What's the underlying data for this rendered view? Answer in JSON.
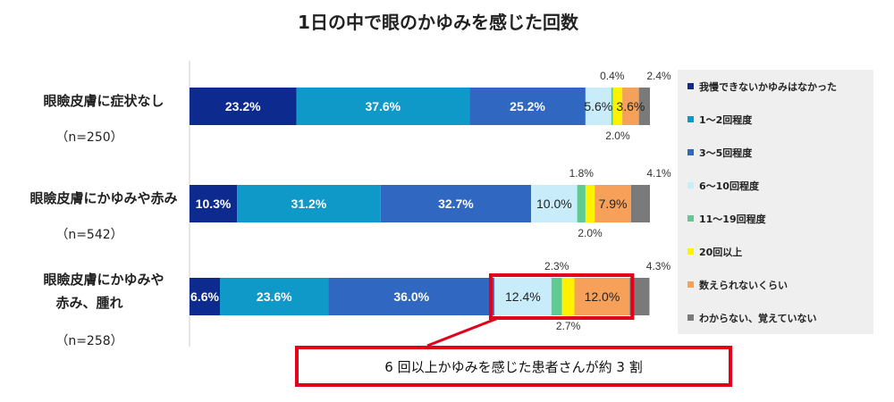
{
  "chart_data": {
    "type": "bar",
    "orientation": "horizontal",
    "stacked": true,
    "title": "1日の中で眼のかゆみを感じた回数",
    "categories": [
      {
        "lines": [
          "眼瞼皮膚に症状なし"
        ],
        "n": "（n=250）"
      },
      {
        "lines": [
          "眼瞼皮膚にかゆみや赤み"
        ],
        "n": "（n=542）"
      },
      {
        "lines": [
          "眼瞼皮膚にかゆみや",
          "赤み、腫れ"
        ],
        "n": "（n=258）"
      }
    ],
    "series": [
      {
        "name": "我慢できないかゆみはなかった",
        "color": "#0d2a8f",
        "values": [
          23.2,
          10.3,
          6.6
        ]
      },
      {
        "name": "1～2回程度",
        "color": "#0f99c8",
        "values": [
          37.6,
          31.2,
          23.6
        ]
      },
      {
        "name": "3～5回程度",
        "color": "#2f67c1",
        "values": [
          25.2,
          32.7,
          36.0
        ]
      },
      {
        "name": "6～10回程度",
        "color": "#c9ecfa",
        "values": [
          5.6,
          10.0,
          12.4
        ]
      },
      {
        "name": "11～19回程度",
        "color": "#5ecb92",
        "values": [
          0.4,
          1.8,
          2.3
        ]
      },
      {
        "name": "20回以上",
        "color": "#fff200",
        "values": [
          2.0,
          2.0,
          2.7
        ]
      },
      {
        "name": "数えられないくらい",
        "color": "#f6a05a",
        "values": [
          3.6,
          7.9,
          12.0
        ]
      },
      {
        "name": "わからない、覚えていない",
        "color": "#7a7a7a",
        "values": [
          2.4,
          4.1,
          4.3
        ]
      }
    ],
    "labels": [
      [
        "23.2%",
        "37.6%",
        "25.2%",
        "5.6%",
        "0.4%",
        "2.0%",
        "3.6%",
        "2.4%"
      ],
      [
        "10.3%",
        "31.2%",
        "32.7%",
        "10.0%",
        "1.8%",
        "2.0%",
        "7.9%",
        "4.1%"
      ],
      [
        "6.6%",
        "23.6%",
        "36.0%",
        "12.4%",
        "2.3%",
        "2.7%",
        "12.0%",
        "4.3%"
      ]
    ],
    "xlim": [
      0,
      100
    ],
    "legend_position": "right",
    "grid": false
  },
  "callout": {
    "text": "6 回以上かゆみを感じた患者さんが約 3 割",
    "color": "#e3001b"
  }
}
